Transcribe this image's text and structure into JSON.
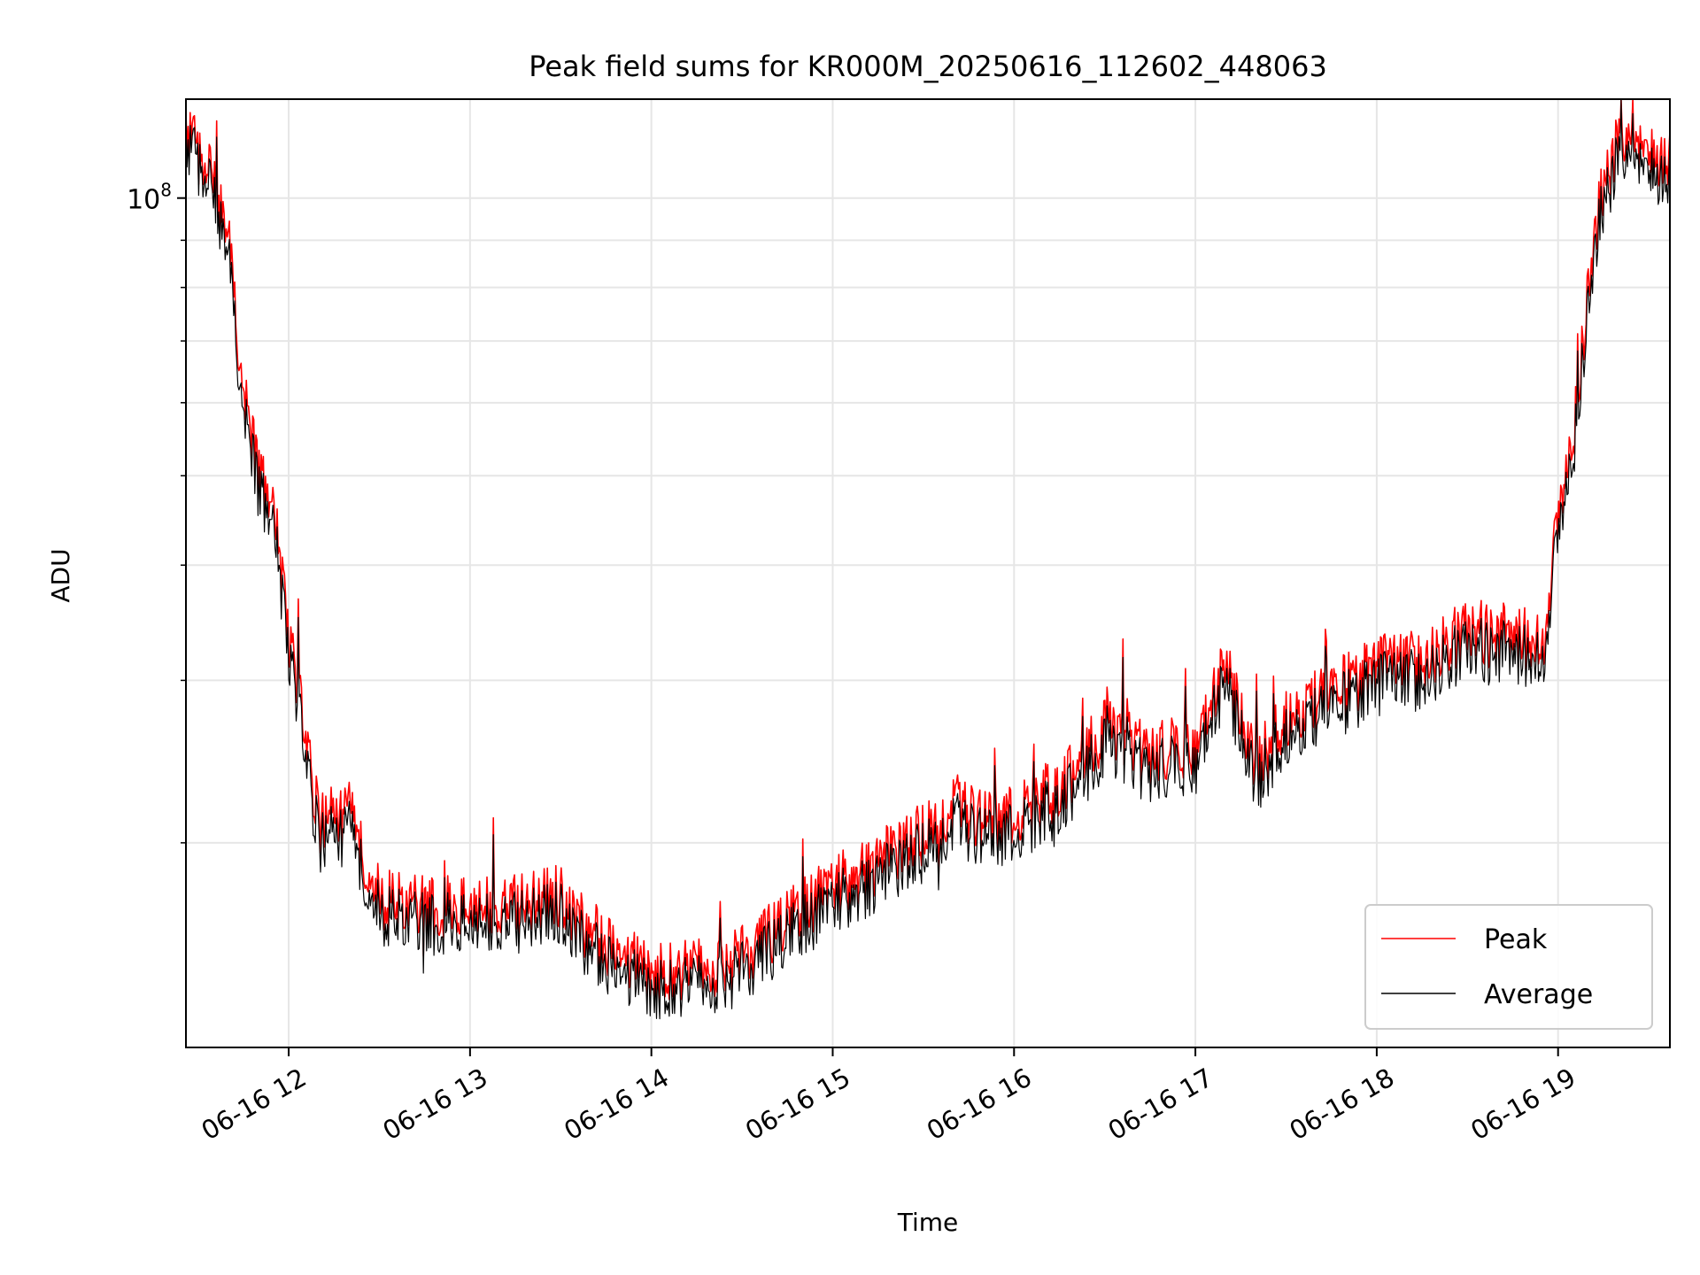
{
  "chart_data": {
    "type": "line",
    "title": "Peak field sums for KR000M_20250616_112602_448063",
    "xlabel": "Time",
    "ylabel": "ADU",
    "x_ticks": [
      "06-16 12",
      "06-16 13",
      "06-16 14",
      "06-16 15",
      "06-16 16",
      "06-16 17",
      "06-16 18",
      "06-16 19"
    ],
    "xlim": [
      "2025-06-16 11:26",
      "2025-06-16 19:37"
    ],
    "y_scale": "log",
    "ylim": [
      12000000,
      128000000
    ],
    "y_major_tick": {
      "value": 100000000,
      "base": "10",
      "exponent": "8"
    },
    "y_minor_ticks": [
      20000000,
      30000000,
      40000000,
      50000000,
      60000000,
      70000000,
      80000000,
      90000000
    ],
    "grid": true,
    "legend_position": "lower-right",
    "series": [
      {
        "name": "Peak",
        "color": "#ff0000",
        "x": [
          "2025-06-16 11:26",
          "2025-06-16 11:30",
          "2025-06-16 11:35",
          "2025-06-16 11:40",
          "2025-06-16 11:45",
          "2025-06-16 11:50",
          "2025-06-16 11:55",
          "2025-06-16 12:00",
          "2025-06-16 12:10",
          "2025-06-16 12:20",
          "2025-06-16 12:30",
          "2025-06-16 12:45",
          "2025-06-16 13:00",
          "2025-06-16 13:15",
          "2025-06-16 13:30",
          "2025-06-16 13:45",
          "2025-06-16 14:00",
          "2025-06-16 14:15",
          "2025-06-16 14:30",
          "2025-06-16 14:45",
          "2025-06-16 15:00",
          "2025-06-16 15:15",
          "2025-06-16 15:30",
          "2025-06-16 15:40",
          "2025-06-16 15:50",
          "2025-06-16 16:00",
          "2025-06-16 16:15",
          "2025-06-16 16:30",
          "2025-06-16 16:45",
          "2025-06-16 17:00",
          "2025-06-16 17:10",
          "2025-06-16 17:20",
          "2025-06-16 17:30",
          "2025-06-16 17:45",
          "2025-06-16 18:00",
          "2025-06-16 18:15",
          "2025-06-16 18:30",
          "2025-06-16 18:45",
          "2025-06-16 18:55",
          "2025-06-16 19:00",
          "2025-06-16 19:05",
          "2025-06-16 19:10",
          "2025-06-16 19:15",
          "2025-06-16 19:20",
          "2025-06-16 19:25",
          "2025-06-16 19:30",
          "2025-06-16 19:37"
        ],
        "y": [
          118000000,
          112000000,
          105000000,
          90000000,
          62000000,
          50000000,
          46000000,
          34000000,
          21000000,
          21500000,
          17500000,
          17000000,
          17000000,
          17000000,
          17500000,
          15500000,
          14500000,
          14500000,
          15000000,
          16500000,
          18000000,
          19000000,
          20500000,
          22000000,
          21000000,
          21500000,
          23000000,
          26500000,
          25000000,
          25500000,
          31000000,
          24000000,
          27500000,
          29000000,
          31000000,
          31500000,
          34000000,
          33500000,
          33000000,
          45000000,
          55000000,
          80000000,
          104000000,
          115000000,
          121000000,
          110000000,
          112000000
        ]
      },
      {
        "name": "Average",
        "color": "#000000",
        "x": [
          "2025-06-16 11:26",
          "2025-06-16 11:30",
          "2025-06-16 11:35",
          "2025-06-16 11:40",
          "2025-06-16 11:45",
          "2025-06-16 11:50",
          "2025-06-16 11:55",
          "2025-06-16 12:00",
          "2025-06-16 12:10",
          "2025-06-16 12:20",
          "2025-06-16 12:30",
          "2025-06-16 12:45",
          "2025-06-16 13:00",
          "2025-06-16 13:15",
          "2025-06-16 13:30",
          "2025-06-16 13:45",
          "2025-06-16 14:00",
          "2025-06-16 14:15",
          "2025-06-16 14:30",
          "2025-06-16 14:45",
          "2025-06-16 15:00",
          "2025-06-16 15:15",
          "2025-06-16 15:30",
          "2025-06-16 15:40",
          "2025-06-16 15:50",
          "2025-06-16 16:00",
          "2025-06-16 16:15",
          "2025-06-16 16:30",
          "2025-06-16 16:45",
          "2025-06-16 17:00",
          "2025-06-16 17:10",
          "2025-06-16 17:20",
          "2025-06-16 17:30",
          "2025-06-16 17:45",
          "2025-06-16 18:00",
          "2025-06-16 18:15",
          "2025-06-16 18:30",
          "2025-06-16 18:45",
          "2025-06-16 18:55",
          "2025-06-16 19:00",
          "2025-06-16 19:05",
          "2025-06-16 19:10",
          "2025-06-16 19:15",
          "2025-06-16 19:20",
          "2025-06-16 19:25",
          "2025-06-16 19:30",
          "2025-06-16 19:37"
        ],
        "y": [
          114000000,
          109000000,
          101000000,
          86000000,
          59000000,
          48000000,
          44000000,
          32500000,
          20000000,
          20500000,
          16800000,
          16300000,
          16300000,
          16300000,
          16800000,
          14800000,
          13900000,
          13900000,
          14400000,
          15800000,
          17200000,
          18200000,
          19600000,
          21000000,
          20100000,
          20600000,
          22000000,
          25300000,
          23900000,
          24400000,
          29700000,
          23000000,
          26300000,
          27800000,
          29700000,
          30100000,
          32500000,
          32100000,
          31600000,
          43100000,
          52700000,
          76600000,
          99600000,
          110000000,
          116000000,
          105000000,
          107000000
        ]
      }
    ]
  }
}
